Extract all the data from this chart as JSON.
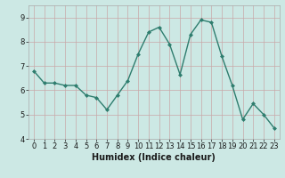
{
  "x": [
    0,
    1,
    2,
    3,
    4,
    5,
    6,
    7,
    8,
    9,
    10,
    11,
    12,
    13,
    14,
    15,
    16,
    17,
    18,
    19,
    20,
    21,
    22,
    23
  ],
  "y": [
    6.8,
    6.3,
    6.3,
    6.2,
    6.2,
    5.8,
    5.7,
    5.2,
    5.8,
    6.4,
    7.5,
    8.4,
    8.6,
    7.9,
    6.65,
    8.3,
    8.9,
    8.8,
    7.4,
    6.2,
    4.8,
    5.45,
    5.0,
    4.45
  ],
  "line_color": "#2e7d6e",
  "marker": "D",
  "marker_size": 2,
  "bg_color": "#cce8e4",
  "grid_color_minor": "#b8dcd8",
  "grid_color_major": "#c8a8a8",
  "xlabel": "Humidex (Indice chaleur)",
  "xlabel_fontsize": 7,
  "xlim": [
    -0.5,
    23.5
  ],
  "ylim": [
    4,
    9.5
  ],
  "yticks": [
    4,
    5,
    6,
    7,
    8,
    9
  ],
  "xticks": [
    0,
    1,
    2,
    3,
    4,
    5,
    6,
    7,
    8,
    9,
    10,
    11,
    12,
    13,
    14,
    15,
    16,
    17,
    18,
    19,
    20,
    21,
    22,
    23
  ],
  "tick_fontsize": 6,
  "line_width": 1.0
}
